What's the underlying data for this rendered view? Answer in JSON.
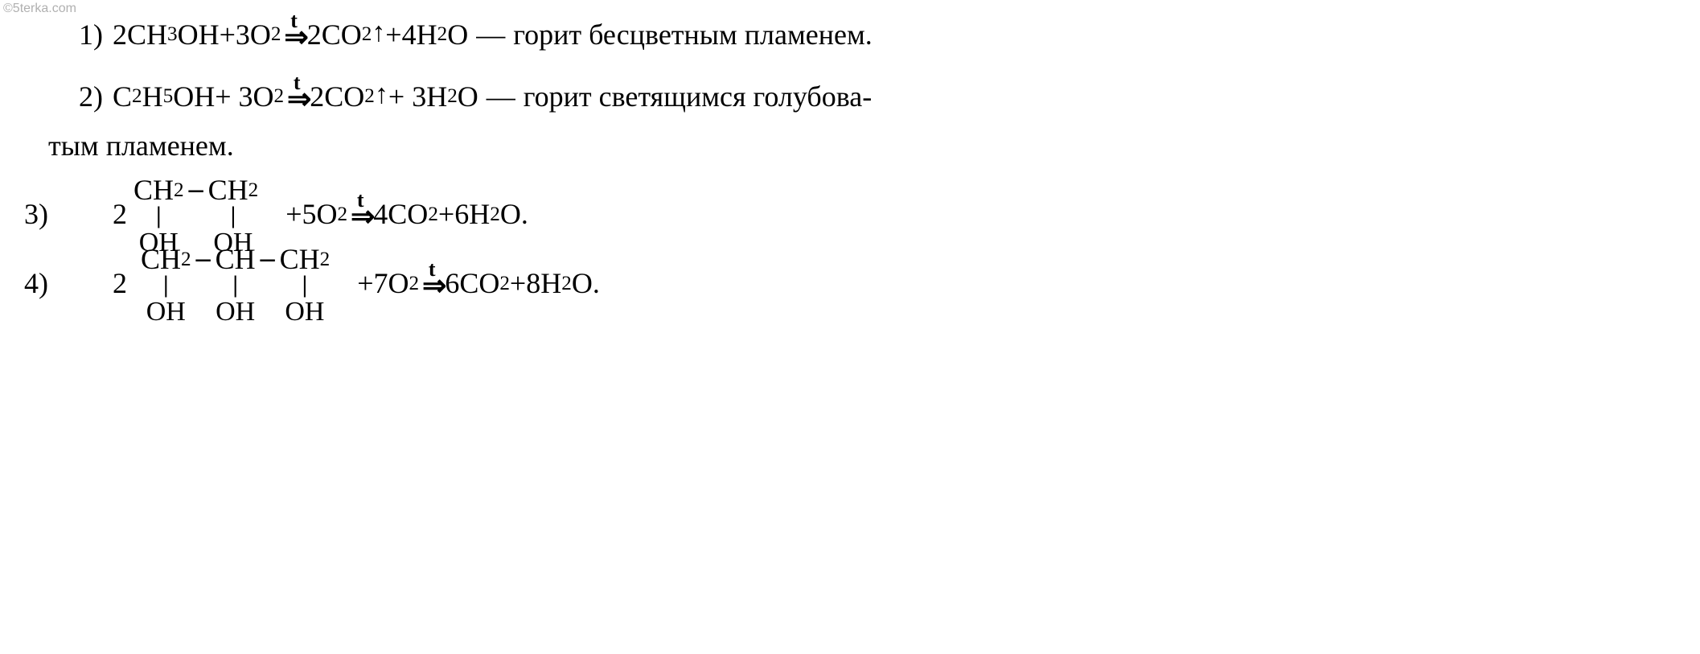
{
  "watermark": "©5terka.com",
  "text_color": "#000000",
  "background_color": "#ffffff",
  "watermark_color": "#b0b0b0",
  "font_family": "Times New Roman",
  "base_font_size": 36,
  "arrow_condition": "t",
  "arrow_glyph": "⇒",
  "up_arrow_glyph": "↑",
  "em_dash": "—",
  "equations": {
    "eq1": {
      "number": "1)",
      "lhs_coef1": "2",
      "lhs_species1": "CH",
      "lhs_species1_sub": "3",
      "lhs_species1_tail": "OH",
      "plus1": " + ",
      "lhs_coef2": "3",
      "lhs_species2": "O",
      "lhs_species2_sub": "2",
      "rhs_coef1": "2",
      "rhs_species1": "CO",
      "rhs_species1_sub": "2",
      "plus2": " + ",
      "rhs_coef2": "4",
      "rhs_species2": "H",
      "rhs_species2_sub": "2",
      "rhs_species2_tail": "O",
      "description": "горит бесцветным пламенем."
    },
    "eq2": {
      "number": "2)",
      "lhs_species1": "C",
      "lhs_species1_sub": "2",
      "lhs_species1_mid": "H",
      "lhs_species1_sub2": "5",
      "lhs_species1_tail": "OH",
      "plus1": " + ",
      "lhs_coef2": "3",
      "lhs_species2": "O",
      "lhs_species2_sub": "2",
      "rhs_coef1": "2",
      "rhs_species1": "CO",
      "rhs_species1_sub": "2",
      "plus2": " + ",
      "rhs_coef2": "3",
      "rhs_species2": "H",
      "rhs_species2_sub": "2",
      "rhs_species2_tail": "O",
      "description_part1": "горит  светящимся  голубова-",
      "description_part2": "тым пламенем."
    },
    "eq3": {
      "number": "3)",
      "lhs_coef1": "2",
      "carbon1": "CH",
      "carbon1_sub": "2",
      "bond": "–",
      "carbon2": "CH",
      "carbon2_sub": "2",
      "oh": "OH",
      "plus1": " + ",
      "lhs_coef2": "5",
      "lhs_species2": "O",
      "lhs_species2_sub": "2",
      "rhs_coef1": "4",
      "rhs_species1": "CO",
      "rhs_species1_sub": "2",
      "plus2": " + ",
      "rhs_coef2": "6",
      "rhs_species2": "H",
      "rhs_species2_sub": "2",
      "rhs_species2_tail": "O",
      "period": "."
    },
    "eq4": {
      "number": "4)",
      "lhs_coef1": "2",
      "carbon1": "CH",
      "carbon1_sub": "2",
      "bond": "–",
      "carbon2": "CH",
      "carbon3": "CH",
      "carbon3_sub": "2",
      "oh": "OH",
      "plus1": " + ",
      "lhs_coef2": "7",
      "lhs_species2": "O",
      "lhs_species2_sub": "2",
      "rhs_coef1": "6",
      "rhs_species1": "CO",
      "rhs_species1_sub": "2",
      "plus2": " + ",
      "rhs_coef2": "8",
      "rhs_species2": "H",
      "rhs_species2_sub": "2",
      "rhs_species2_tail": "O",
      "period": "."
    }
  }
}
